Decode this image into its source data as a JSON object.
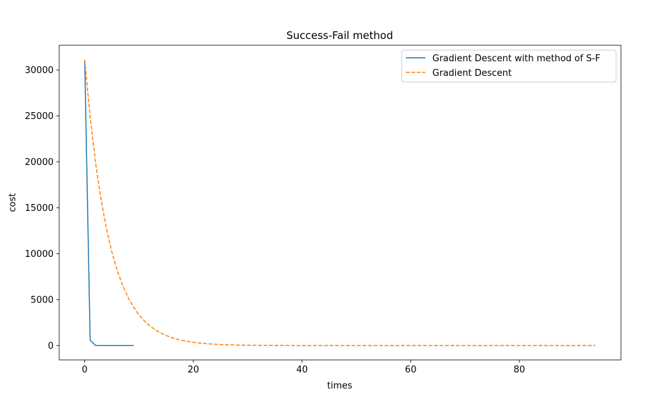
{
  "chart_data": {
    "type": "line",
    "title": "Success-Fail method",
    "xlabel": "times",
    "ylabel": "cost",
    "xlim": [
      -4.7,
      98.7
    ],
    "ylim": [
      -1560,
      32700
    ],
    "x_ticks": [
      0,
      20,
      40,
      60,
      80
    ],
    "y_ticks": [
      0,
      5000,
      10000,
      15000,
      20000,
      25000,
      30000
    ],
    "grid": false,
    "legend_position": "top-right",
    "series": [
      {
        "name": "Gradient Descent with method of S-F",
        "color": "#1f77b4",
        "style": "solid",
        "x": [
          0,
          1,
          2,
          3,
          4,
          5,
          6,
          7,
          8,
          9
        ],
        "y": [
          31100,
          600,
          10,
          5,
          3,
          2,
          1,
          1,
          1,
          1
        ]
      },
      {
        "name": "Gradient Descent",
        "color": "#ff7f0e",
        "style": "dashed",
        "decay": {
          "start": 31100,
          "factor_per_step": 0.8,
          "steps": 95
        }
      }
    ]
  }
}
